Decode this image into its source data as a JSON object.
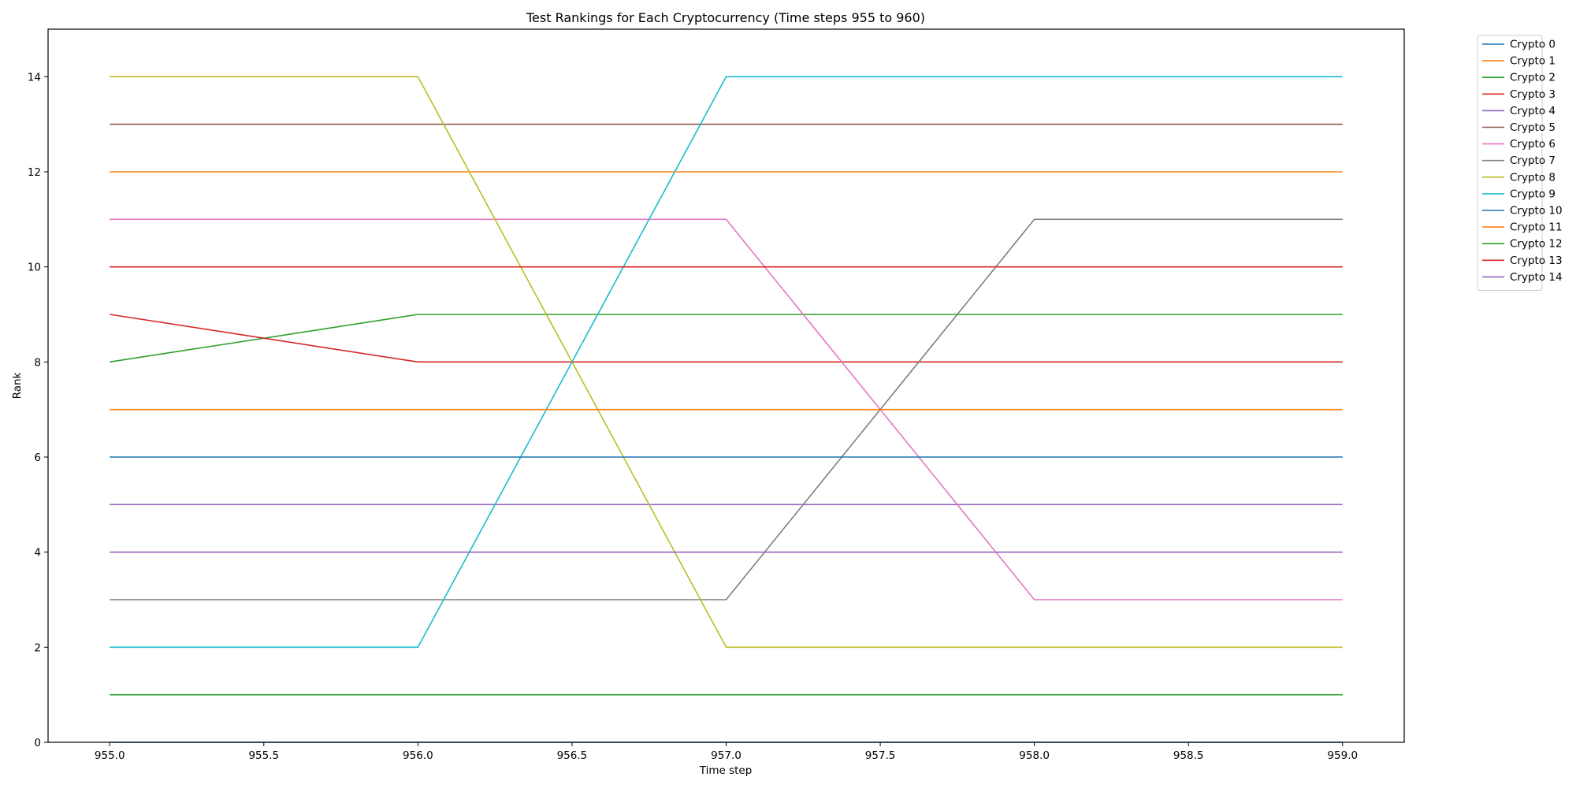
{
  "chart_data": {
    "type": "line",
    "title": "Test Rankings for Each Cryptocurrency (Time steps 955 to 960)",
    "xlabel": "Time step",
    "ylabel": "Rank",
    "x": [
      955,
      956,
      957,
      958,
      959
    ],
    "xlim": [
      954.8,
      959.2
    ],
    "ylim": [
      0,
      15
    ],
    "xticks": [
      955.0,
      955.5,
      956.0,
      956.5,
      957.0,
      957.5,
      958.0,
      958.5,
      959.0
    ],
    "xtick_labels": [
      "955.0",
      "955.5",
      "956.0",
      "956.5",
      "957.0",
      "957.5",
      "958.0",
      "958.5",
      "959.0"
    ],
    "yticks": [
      0,
      2,
      4,
      6,
      8,
      10,
      12,
      14
    ],
    "ytick_labels": [
      "0",
      "2",
      "4",
      "6",
      "8",
      "10",
      "12",
      "14"
    ],
    "grid": false,
    "legend_position": "outside-top-right",
    "series": [
      {
        "name": "Crypto 0",
        "color": "#1f77b4",
        "values": [
          0,
          0,
          0,
          0,
          0
        ]
      },
      {
        "name": "Crypto 1",
        "color": "#ff7f0e",
        "values": [
          12,
          12,
          12,
          12,
          12
        ]
      },
      {
        "name": "Crypto 2",
        "color": "#2ca02c",
        "values": [
          8,
          9,
          9,
          9,
          9
        ]
      },
      {
        "name": "Crypto 3",
        "color": "#d62728",
        "values": [
          9,
          8,
          8,
          8,
          8
        ]
      },
      {
        "name": "Crypto 4",
        "color": "#9467bd",
        "values": [
          5,
          5,
          5,
          5,
          5
        ]
      },
      {
        "name": "Crypto 5",
        "color": "#8c564b",
        "values": [
          13,
          13,
          13,
          13,
          13
        ]
      },
      {
        "name": "Crypto 6",
        "color": "#e377c2",
        "values": [
          11,
          11,
          11,
          3,
          3
        ]
      },
      {
        "name": "Crypto 7",
        "color": "#7f7f7f",
        "values": [
          3,
          3,
          3,
          11,
          11
        ]
      },
      {
        "name": "Crypto 8",
        "color": "#bcbd22",
        "values": [
          14,
          14,
          2,
          2,
          2
        ]
      },
      {
        "name": "Crypto 9",
        "color": "#17becf",
        "values": [
          2,
          2,
          14,
          14,
          14
        ]
      },
      {
        "name": "Crypto 10",
        "color": "#1f77b4",
        "values": [
          6,
          6,
          6,
          6,
          6
        ]
      },
      {
        "name": "Crypto 11",
        "color": "#ff7f0e",
        "values": [
          7,
          7,
          7,
          7,
          7
        ]
      },
      {
        "name": "Crypto 12",
        "color": "#2ca02c",
        "values": [
          1,
          1,
          1,
          1,
          1
        ]
      },
      {
        "name": "Crypto 13",
        "color": "#d62728",
        "values": [
          10,
          10,
          10,
          10,
          10
        ]
      },
      {
        "name": "Crypto 14",
        "color": "#9467bd",
        "values": [
          4,
          4,
          4,
          4,
          4
        ]
      }
    ]
  }
}
